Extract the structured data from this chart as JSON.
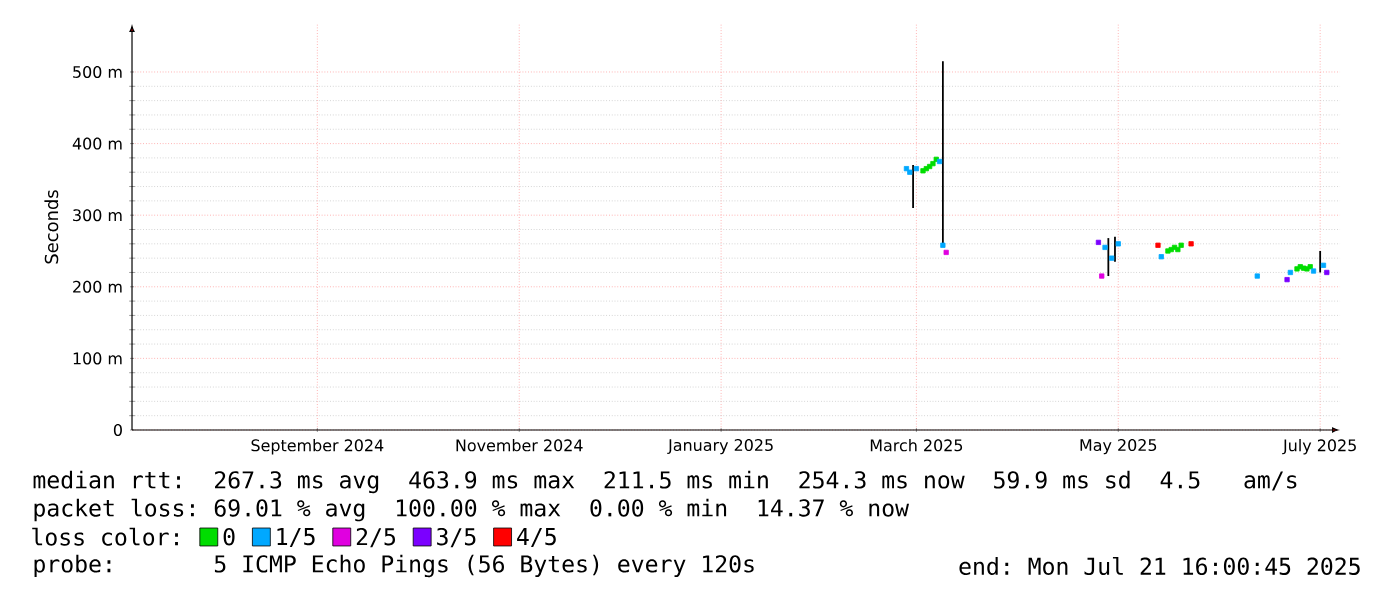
{
  "chart_data": {
    "type": "scatter",
    "ylabel": "Seconds",
    "legend_title": "loss color:",
    "xlim": [
      "2024-07-21",
      "2025-07-21"
    ],
    "xticks": [
      {
        "value": "2024-09-15",
        "label": "September 2024"
      },
      {
        "value": "2024-11-15",
        "label": "November 2024"
      },
      {
        "value": "2025-01-15",
        "label": "January 2025"
      },
      {
        "value": "2025-03-15",
        "label": "March 2025"
      },
      {
        "value": "2025-05-15",
        "label": "May 2025"
      },
      {
        "value": "2025-07-15",
        "label": "July 2025"
      }
    ],
    "ylim": [
      0,
      567
    ],
    "yticks": [
      0,
      {
        "value": 100,
        "label": "100 m"
      },
      {
        "value": 200,
        "label": "200 m"
      },
      {
        "value": 300,
        "label": "300 m"
      },
      {
        "value": 400,
        "label": "400 m"
      },
      {
        "value": 500,
        "label": "500 m"
      }
    ],
    "grid": true,
    "legend": "bottom left",
    "marker": "square",
    "series": [
      {
        "type": "line",
        "marker": "none",
        "color": "#000000",
        "x": [
          "2025-03-14",
          "2025-03-14",
          "2025-03-15",
          "2025-03-23",
          "2025-03-23",
          "2025-03-24",
          "2025-05-12",
          "2025-05-12",
          "2025-05-13",
          "2025-05-14",
          "2025-05-14",
          "2025-05-15",
          "2025-07-15",
          "2025-07-15"
        ],
        "values": [
          370,
          310,
          null,
          515,
          260,
          null,
          268,
          215,
          null,
          270,
          235,
          null,
          250,
          220
        ]
      },
      {
        "name": "0",
        "color": "#00dd00",
        "x": [
          "2025-03-17",
          "2025-03-18",
          "2025-03-19",
          "2025-03-20",
          "2025-03-21",
          "2025-05-30",
          "2025-05-31",
          "2025-06-01",
          "2025-06-02",
          "2025-06-03",
          "2025-07-08",
          "2025-07-09",
          "2025-07-10",
          "2025-07-11",
          "2025-07-12"
        ],
        "values": [
          362,
          365,
          368,
          372,
          378,
          250,
          252,
          255,
          252,
          258,
          225,
          228,
          226,
          225,
          228
        ]
      },
      {
        "name": "1/5",
        "color": "#00a8ff",
        "x": [
          "2025-03-12",
          "2025-03-13",
          "2025-03-15",
          "2025-03-22",
          "2025-03-23",
          "2025-05-11",
          "2025-05-13",
          "2025-05-15",
          "2025-05-28",
          "2025-06-26",
          "2025-07-06",
          "2025-07-13",
          "2025-07-16"
        ],
        "values": [
          365,
          360,
          365,
          375,
          258,
          255,
          240,
          260,
          242,
          215,
          220,
          222,
          230
        ]
      },
      {
        "name": "2/5",
        "color": "#e000e0",
        "x": [
          "2025-03-24",
          "2025-05-10"
        ],
        "values": [
          248,
          215
        ]
      },
      {
        "name": "3/5",
        "color": "#7b00ff",
        "x": [
          "2025-05-09",
          "2025-07-05",
          "2025-07-17"
        ],
        "values": [
          262,
          210,
          220
        ]
      },
      {
        "name": "4/5",
        "color": "#ff0000",
        "x": [
          "2025-05-27",
          "2025-06-06"
        ],
        "values": [
          258,
          260
        ]
      }
    ],
    "annotations": [
      "median rtt:  267.3 ms avg  463.9 ms max  211.5 ms min  254.3 ms now  59.9 ms sd  4.5   am/s",
      "packet loss: 69.01 % avg  100.00 % max  0.00 % min  14.37 % now",
      "probe:       5 ICMP Echo Pings (56 Bytes) every 120s",
      "end: Mon Jul 21 16:00:45 2025"
    ]
  }
}
